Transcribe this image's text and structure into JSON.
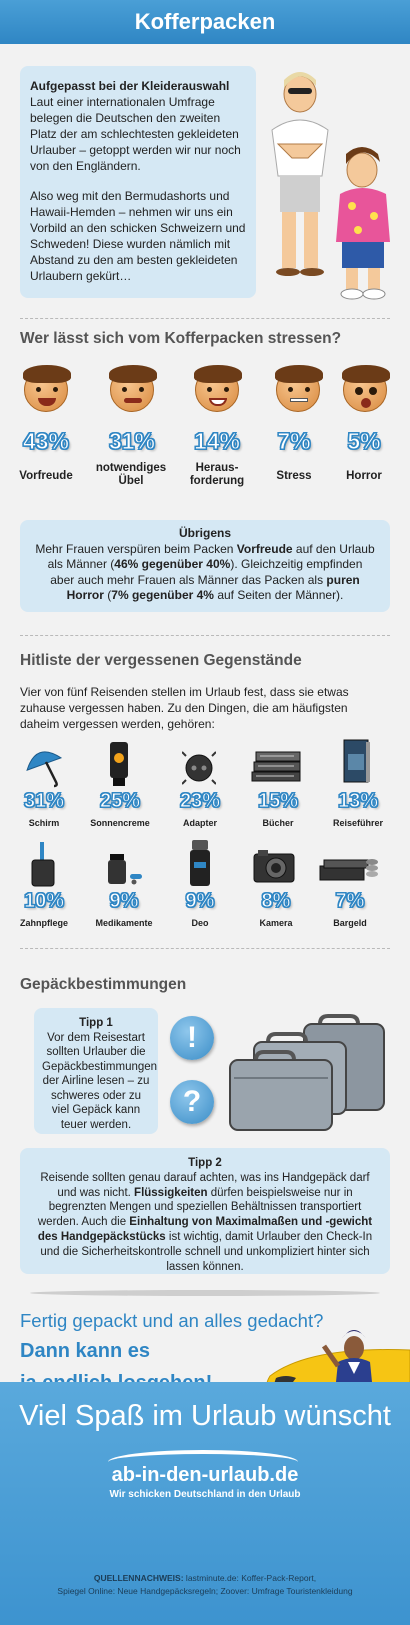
{
  "header": {
    "title": "Kofferpacken"
  },
  "intro": {
    "heading": "Aufgepasst bei der Kleiderauswahl",
    "paragraph1": "Laut einer internationalen Umfrage belegen die Deutschen den zweiten Platz der am schlechtesten gekleideten Urlauber – getoppt werden wir nur noch von den Engländern.",
    "paragraph2": "Also weg mit den Bermudashorts und Hawaii-Hemden – nehmen wir uns ein Vorbild an den schicken Schweizern und Schweden! Diese wurden nämlich mit Abstand zu den am besten gekleideten Urlaubern gekürt…"
  },
  "stress": {
    "heading": "Wer lässt sich vom Kofferpacken stressen?",
    "items": [
      {
        "pct": "43%",
        "label": "Vorfreude",
        "icon": "happy-face-icon"
      },
      {
        "pct": "31%",
        "label": "notwendiges Übel",
        "icon": "worried-face-icon"
      },
      {
        "pct": "14%",
        "label": "Heraus-forderung",
        "icon": "grinning-face-icon"
      },
      {
        "pct": "7%",
        "label": "Stress",
        "icon": "stressed-face-icon"
      },
      {
        "pct": "5%",
        "label": "Horror",
        "icon": "horrified-face-icon"
      }
    ],
    "note": {
      "title": "Übrigens",
      "t1": "Mehr Frauen verspüren beim Packen ",
      "b1": "Vorfreude",
      "t2": " auf den Urlaub als Männer (",
      "b2": "46% gegenüber 40%",
      "t3": "). Gleichzeitig empfinden aber auch mehr Frauen als Männer das Packen als ",
      "b3": "puren Horror",
      "t4": " (",
      "b4": "7% gegenüber 4%",
      "t5": " auf Seiten der Männer)."
    }
  },
  "forgotten": {
    "heading": "Hitliste der vergessenen Gegenstände",
    "intro": "Vier von fünf Reisenden stellen im Urlaub fest, dass sie etwas zuhause vergessen haben. Zu den Dingen, die am häufigsten daheim vergessen werden, gehören:",
    "items": [
      {
        "pct": "31%",
        "label": "Schirm",
        "icon": "umbrella-icon"
      },
      {
        "pct": "25%",
        "label": "Sonnencreme",
        "icon": "sunscreen-icon"
      },
      {
        "pct": "23%",
        "label": "Adapter",
        "icon": "plug-adapter-icon"
      },
      {
        "pct": "15%",
        "label": "Bücher",
        "icon": "books-icon"
      },
      {
        "pct": "13%",
        "label": "Reiseführer",
        "icon": "travel-guide-icon"
      },
      {
        "pct": "10%",
        "label": "Zahnpflege",
        "icon": "toothbrush-icon"
      },
      {
        "pct": "9%",
        "label": "Medikamente",
        "icon": "medicine-icon"
      },
      {
        "pct": "9%",
        "label": "Deo",
        "icon": "deodorant-icon"
      },
      {
        "pct": "8%",
        "label": "Kamera",
        "icon": "camera-icon"
      },
      {
        "pct": "7%",
        "label": "Bargeld",
        "icon": "cash-icon"
      }
    ]
  },
  "luggage": {
    "heading": "Gepäckbestimmungen",
    "tip1": {
      "title": "Tipp 1",
      "text": "Vor dem Reisestart sollten Urlauber die Gepäckbestimmungen der Airline lesen – zu schweres oder zu viel Gepäck kann teuer werden."
    },
    "bubble_exclaim": "!",
    "bubble_question": "?",
    "tip2": {
      "title": "Tipp 2",
      "t1": "Reisende sollten genau darauf achten, was ins Handgepäck darf und was nicht. ",
      "b1": "Flüssigkeiten",
      "t2": " dürfen beispielsweise nur in begrenzten Mengen und speziellen Behältnissen transportiert werden. Auch die ",
      "b2": "Einhaltung von Maximalmaßen und -gewicht des Handgepäckstücks",
      "t3": " ist wichtig, damit Urlauber den Check-In und die Sicherheitskontrolle schnell und unkompliziert hinter sich lassen können."
    }
  },
  "closing": {
    "question": "Fertig gepackt und an alles gedacht?",
    "line1": "Dann kann es",
    "line2": "ja endlich losgehen!"
  },
  "footer": {
    "wish": "Viel Spaß im Urlaub wünscht",
    "logo_main": "ab-in-den-urlaub.de",
    "logo_tagline": "Wir schicken Deutschland in den Urlaub",
    "sources_label": "QUELLENNACHWEIS:",
    "sources_line1": " lastminute.de: Koffer-Pack-Report,",
    "sources_line2": "Spiegel Online: Neue Handgepäcksregeln; Zoover: Umfrage Touristenkleidung"
  },
  "colors": {
    "accent": "#2f86c4",
    "card": "#d5e8f4",
    "background": "#f2f2f2"
  }
}
